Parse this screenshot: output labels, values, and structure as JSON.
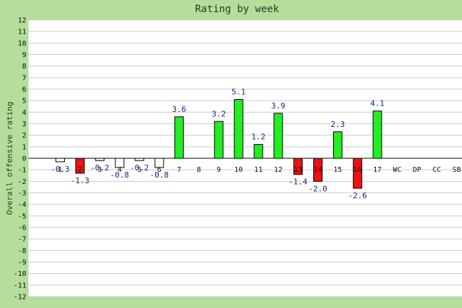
{
  "chart_data": {
    "type": "bar",
    "title": "Rating by week",
    "xlabel": "",
    "ylabel": "Overall offensive rating",
    "ylim": [
      -12,
      12
    ],
    "yticks": [
      12,
      11,
      10,
      9,
      8,
      7,
      6,
      5,
      4,
      3,
      2,
      1,
      0,
      -1,
      -2,
      -3,
      -4,
      -5,
      -6,
      -7,
      -8,
      -9,
      -10,
      -11,
      -12
    ],
    "grid": true,
    "categories": [
      "1",
      "2",
      "3",
      "4",
      "5",
      "6",
      "7",
      "8",
      "9",
      "10",
      "11",
      "12",
      "13",
      "14",
      "15",
      "16",
      "17",
      "WC",
      "DP",
      "CC",
      "SB"
    ],
    "values": [
      -0.3,
      -1.3,
      -0.2,
      -0.8,
      -0.2,
      -0.8,
      3.6,
      null,
      3.2,
      5.1,
      1.2,
      3.9,
      -1.4,
      -2.0,
      2.3,
      -2.6,
      4.1,
      null,
      null,
      null,
      null
    ],
    "data_labels": [
      "-0.3",
      "-1.3",
      "-0.2",
      "-0.8",
      "-0.2",
      "-0.8",
      "3.6",
      "",
      "3.2",
      "5.1",
      "1.2",
      "3.9",
      "-1.4",
      "-2.0",
      "2.3",
      "-2.6",
      "4.1",
      "",
      "",
      "",
      ""
    ],
    "bar_status": [
      "neutral",
      "loss",
      "neutral",
      "neutral",
      "neutral",
      "neutral",
      "win",
      "none",
      "win",
      "win",
      "win",
      "win",
      "loss",
      "loss",
      "win",
      "loss",
      "win",
      "none",
      "none",
      "none",
      "none"
    ]
  },
  "colors": {
    "frame": "#b5dd9b",
    "plot_bg": "#ffffff",
    "grid": "#cccccc",
    "win": "#22ee22",
    "loss": "#ee1111",
    "neutral": "#ffffff",
    "bar_edge": "#000000",
    "data_label": "#1c1c7a"
  }
}
